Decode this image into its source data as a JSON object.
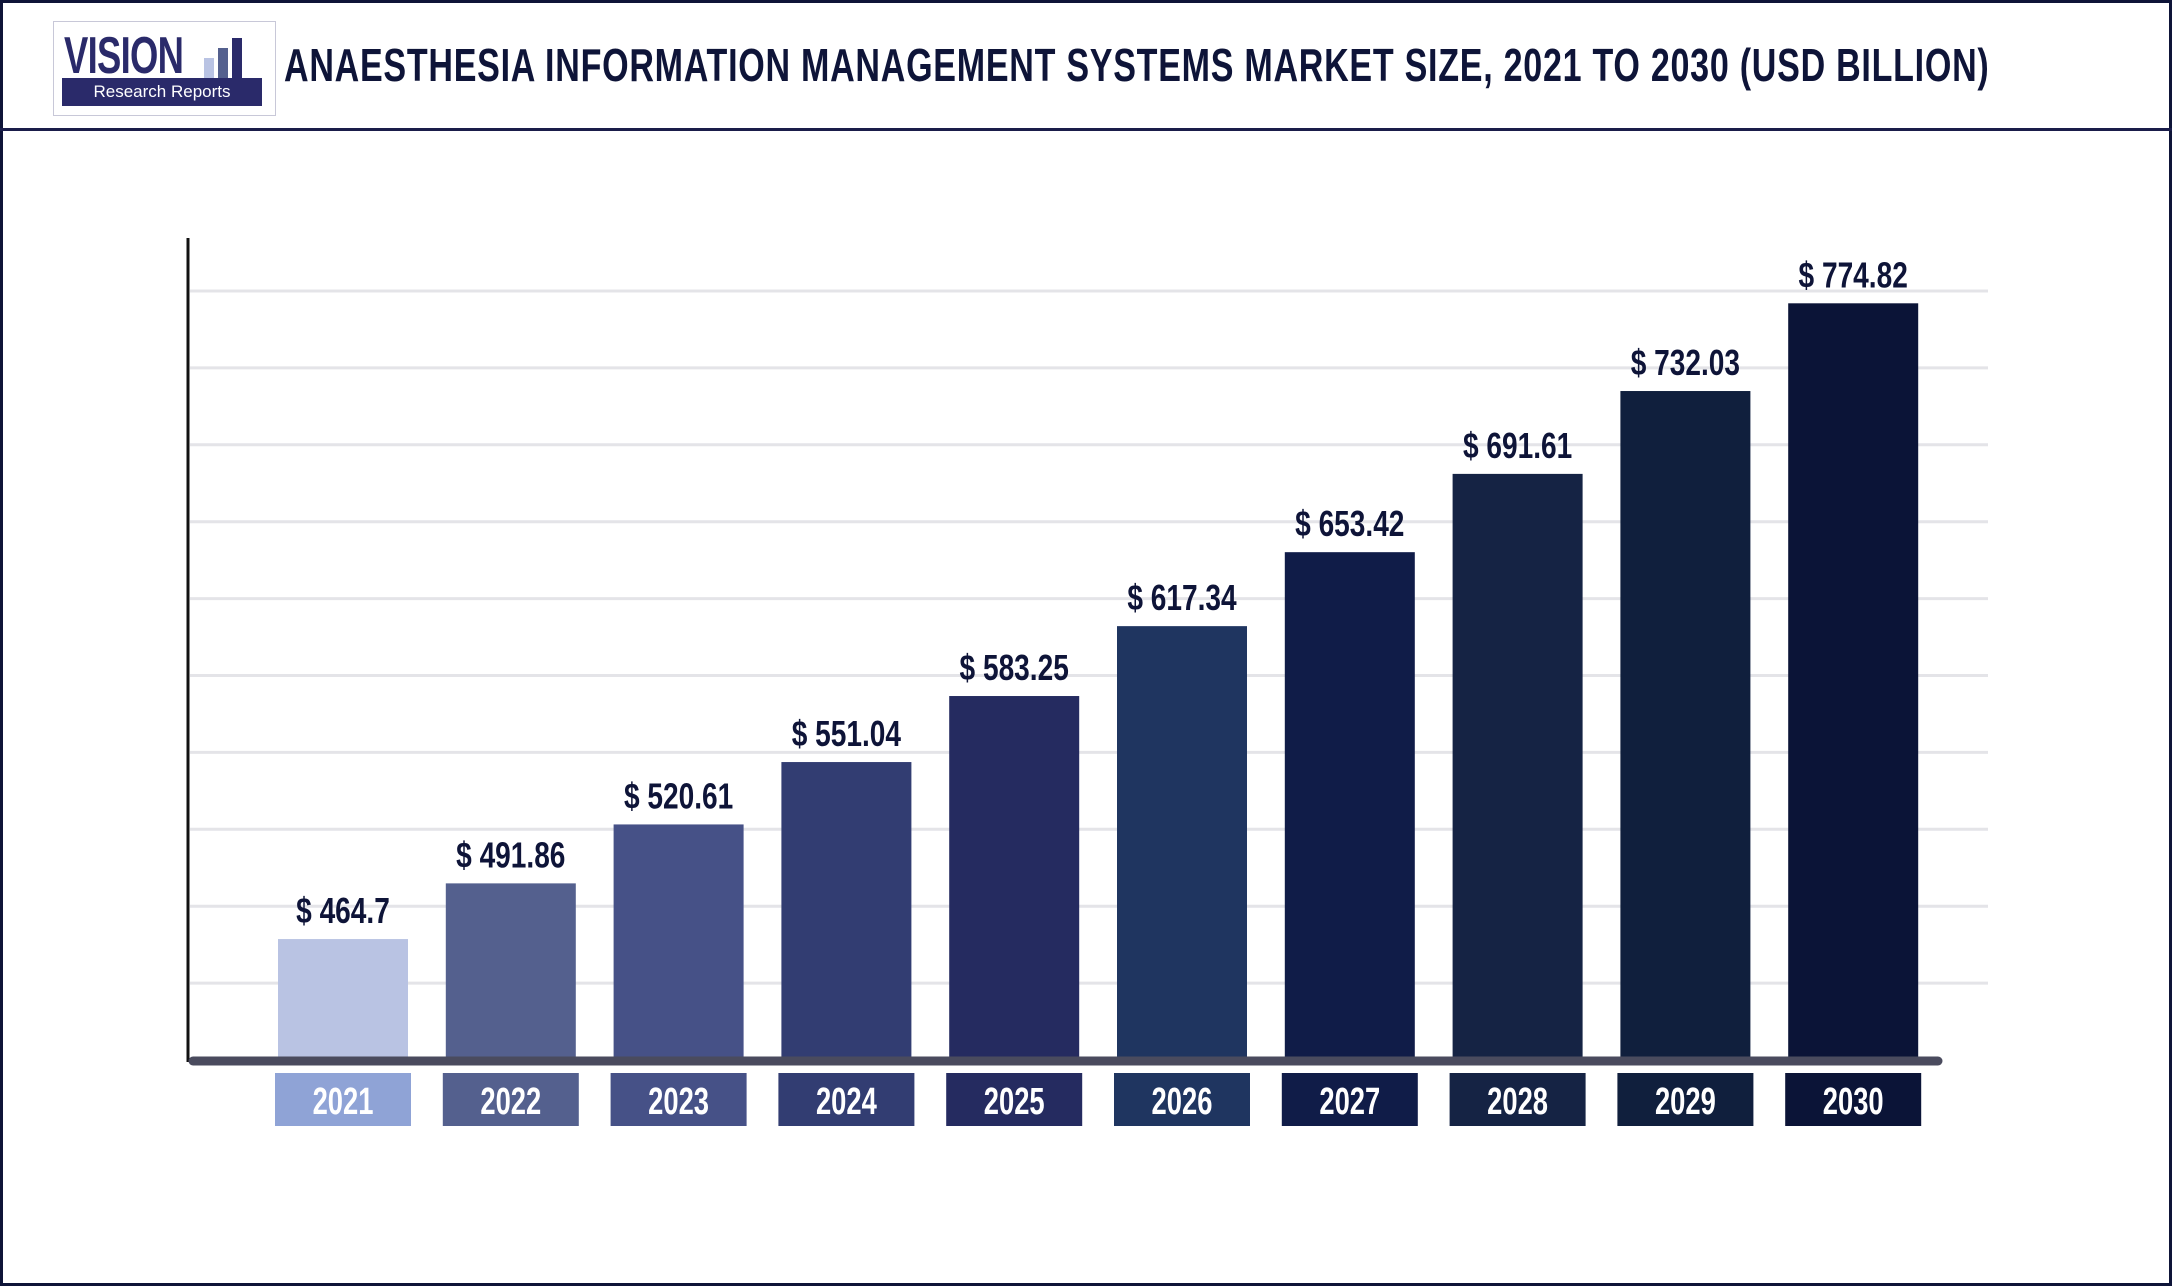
{
  "header": {
    "logo_text": "VISION",
    "logo_subtext": "Research Reports",
    "title": "ANAESTHESIA INFORMATION MANAGEMENT SYSTEMS MARKET SIZE, 2021 TO 2030 (USD BILLION)"
  },
  "chart_data": {
    "type": "bar",
    "title": "ANAESTHESIA INFORMATION MANAGEMENT SYSTEMS MARKET SIZE, 2021 TO 2030 (USD BILLION)",
    "categories": [
      "2021",
      "2022",
      "2023",
      "2024",
      "2025",
      "2026",
      "2027",
      "2028",
      "2029",
      "2030"
    ],
    "values": [
      464.7,
      491.86,
      520.61,
      551.04,
      583.25,
      617.34,
      653.42,
      691.61,
      732.03,
      774.82
    ],
    "data_labels": [
      "$ 464.7",
      "$ 491.86",
      "$ 520.61",
      "$ 551.04",
      "$ 583.25",
      "$ 617.34",
      "$ 653.42",
      "$ 691.61",
      "$ 732.03",
      "$ 774.82"
    ],
    "xlabel": "",
    "ylabel": "",
    "ylim": [
      405.7,
      800
    ],
    "grid": true,
    "legend": "none",
    "bar_colors": [
      "#b9c3e3",
      "#54608e",
      "#465187",
      "#323d72",
      "#252b60",
      "#1f3560",
      "#101c48",
      "#152344",
      "#101f3d",
      "#0b1437"
    ],
    "label_box_colors": [
      "#8fa3d6",
      "#54608e",
      "#465187",
      "#323d72",
      "#252b60",
      "#1f3560",
      "#101c48",
      "#152344",
      "#101f3d",
      "#0b1437"
    ]
  }
}
